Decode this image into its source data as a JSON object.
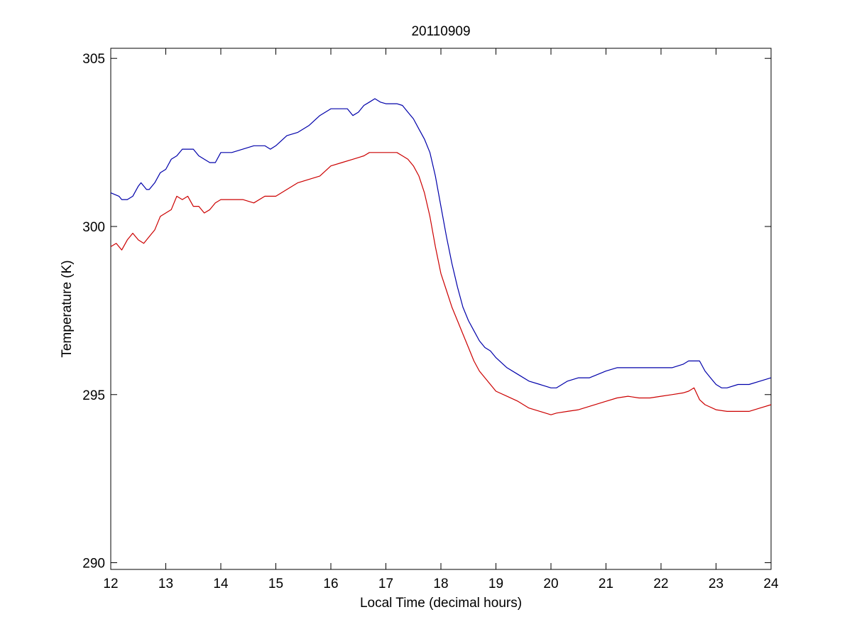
{
  "chart_data": {
    "type": "line",
    "title": "20110909",
    "xlabel": "Local Time (decimal hours)",
    "ylabel": "Temperature (K)",
    "xlim": [
      12,
      24
    ],
    "ylim": [
      289.8,
      305.3
    ],
    "xticks": [
      12,
      13,
      14,
      15,
      16,
      17,
      18,
      19,
      20,
      21,
      22,
      23,
      24
    ],
    "yticks": [
      290,
      295,
      300,
      305
    ],
    "grid": false,
    "legend": "none",
    "series": [
      {
        "color": "#0000aa",
        "x": [
          12.0,
          12.15,
          12.2,
          12.3,
          12.4,
          12.5,
          12.55,
          12.65,
          12.7,
          12.8,
          12.9,
          13.0,
          13.1,
          13.2,
          13.3,
          13.4,
          13.5,
          13.6,
          13.7,
          13.8,
          13.9,
          14.0,
          14.2,
          14.4,
          14.6,
          14.8,
          14.9,
          15.0,
          15.2,
          15.4,
          15.6,
          15.8,
          16.0,
          16.2,
          16.3,
          16.4,
          16.5,
          16.6,
          16.7,
          16.8,
          16.9,
          17.0,
          17.1,
          17.2,
          17.3,
          17.4,
          17.5,
          17.6,
          17.7,
          17.8,
          17.9,
          18.0,
          18.1,
          18.2,
          18.3,
          18.4,
          18.5,
          18.6,
          18.7,
          18.8,
          18.9,
          19.0,
          19.2,
          19.4,
          19.6,
          19.8,
          20.0,
          20.1,
          20.3,
          20.5,
          20.7,
          21.0,
          21.2,
          21.4,
          21.6,
          21.8,
          22.0,
          22.2,
          22.4,
          22.5,
          22.6,
          22.7,
          22.8,
          22.9,
          23.0,
          23.1,
          23.2,
          23.4,
          23.6,
          23.8,
          24.0
        ],
        "values": [
          301.0,
          300.9,
          300.8,
          300.8,
          300.9,
          301.2,
          301.3,
          301.1,
          301.1,
          301.3,
          301.6,
          301.7,
          302.0,
          302.1,
          302.3,
          302.3,
          302.3,
          302.1,
          302.0,
          301.9,
          301.9,
          302.2,
          302.2,
          302.3,
          302.4,
          302.4,
          302.3,
          302.4,
          302.7,
          302.8,
          303.0,
          303.3,
          303.5,
          303.5,
          303.5,
          303.3,
          303.4,
          303.6,
          303.7,
          303.8,
          303.7,
          303.65,
          303.65,
          303.65,
          303.6,
          303.4,
          303.2,
          302.9,
          302.6,
          302.2,
          301.5,
          300.6,
          299.7,
          298.9,
          298.2,
          297.6,
          297.2,
          296.9,
          296.6,
          296.4,
          296.3,
          296.1,
          295.8,
          295.6,
          295.4,
          295.3,
          295.2,
          295.2,
          295.4,
          295.5,
          295.5,
          295.7,
          295.8,
          295.8,
          295.8,
          295.8,
          295.8,
          295.8,
          295.9,
          296.0,
          296.0,
          296.0,
          295.7,
          295.5,
          295.3,
          295.2,
          295.2,
          295.3,
          295.3,
          295.4,
          295.5
        ]
      },
      {
        "color": "#cc0000",
        "x": [
          12.0,
          12.1,
          12.2,
          12.3,
          12.4,
          12.5,
          12.6,
          12.7,
          12.8,
          12.9,
          13.0,
          13.1,
          13.2,
          13.3,
          13.4,
          13.5,
          13.6,
          13.7,
          13.8,
          13.9,
          14.0,
          14.2,
          14.4,
          14.6,
          14.8,
          15.0,
          15.2,
          15.4,
          15.6,
          15.8,
          16.0,
          16.2,
          16.4,
          16.6,
          16.7,
          16.8,
          17.0,
          17.2,
          17.3,
          17.4,
          17.5,
          17.6,
          17.7,
          17.8,
          17.9,
          18.0,
          18.1,
          18.2,
          18.3,
          18.4,
          18.5,
          18.6,
          18.7,
          18.8,
          18.9,
          19.0,
          19.2,
          19.4,
          19.6,
          19.8,
          20.0,
          20.1,
          20.3,
          20.5,
          20.7,
          21.0,
          21.2,
          21.4,
          21.6,
          21.8,
          22.0,
          22.2,
          22.4,
          22.5,
          22.6,
          22.7,
          22.8,
          23.0,
          23.2,
          23.4,
          23.6,
          23.8,
          24.0
        ],
        "values": [
          299.4,
          299.5,
          299.3,
          299.6,
          299.8,
          299.6,
          299.5,
          299.7,
          299.9,
          300.3,
          300.4,
          300.5,
          300.9,
          300.8,
          300.9,
          300.6,
          300.6,
          300.4,
          300.5,
          300.7,
          300.8,
          300.8,
          300.8,
          300.7,
          300.9,
          300.9,
          301.1,
          301.3,
          301.4,
          301.5,
          301.8,
          301.9,
          302.0,
          302.1,
          302.2,
          302.2,
          302.2,
          302.2,
          302.1,
          302.0,
          301.8,
          301.5,
          301.0,
          300.3,
          299.4,
          298.6,
          298.1,
          297.6,
          297.2,
          296.8,
          296.4,
          296.0,
          295.7,
          295.5,
          295.3,
          295.1,
          294.95,
          294.8,
          294.6,
          294.5,
          294.4,
          294.45,
          294.5,
          294.55,
          294.65,
          294.8,
          294.9,
          294.95,
          294.9,
          294.9,
          294.95,
          295.0,
          295.05,
          295.1,
          295.2,
          294.85,
          294.7,
          294.55,
          294.5,
          294.5,
          294.5,
          294.6,
          294.7
        ]
      }
    ]
  }
}
